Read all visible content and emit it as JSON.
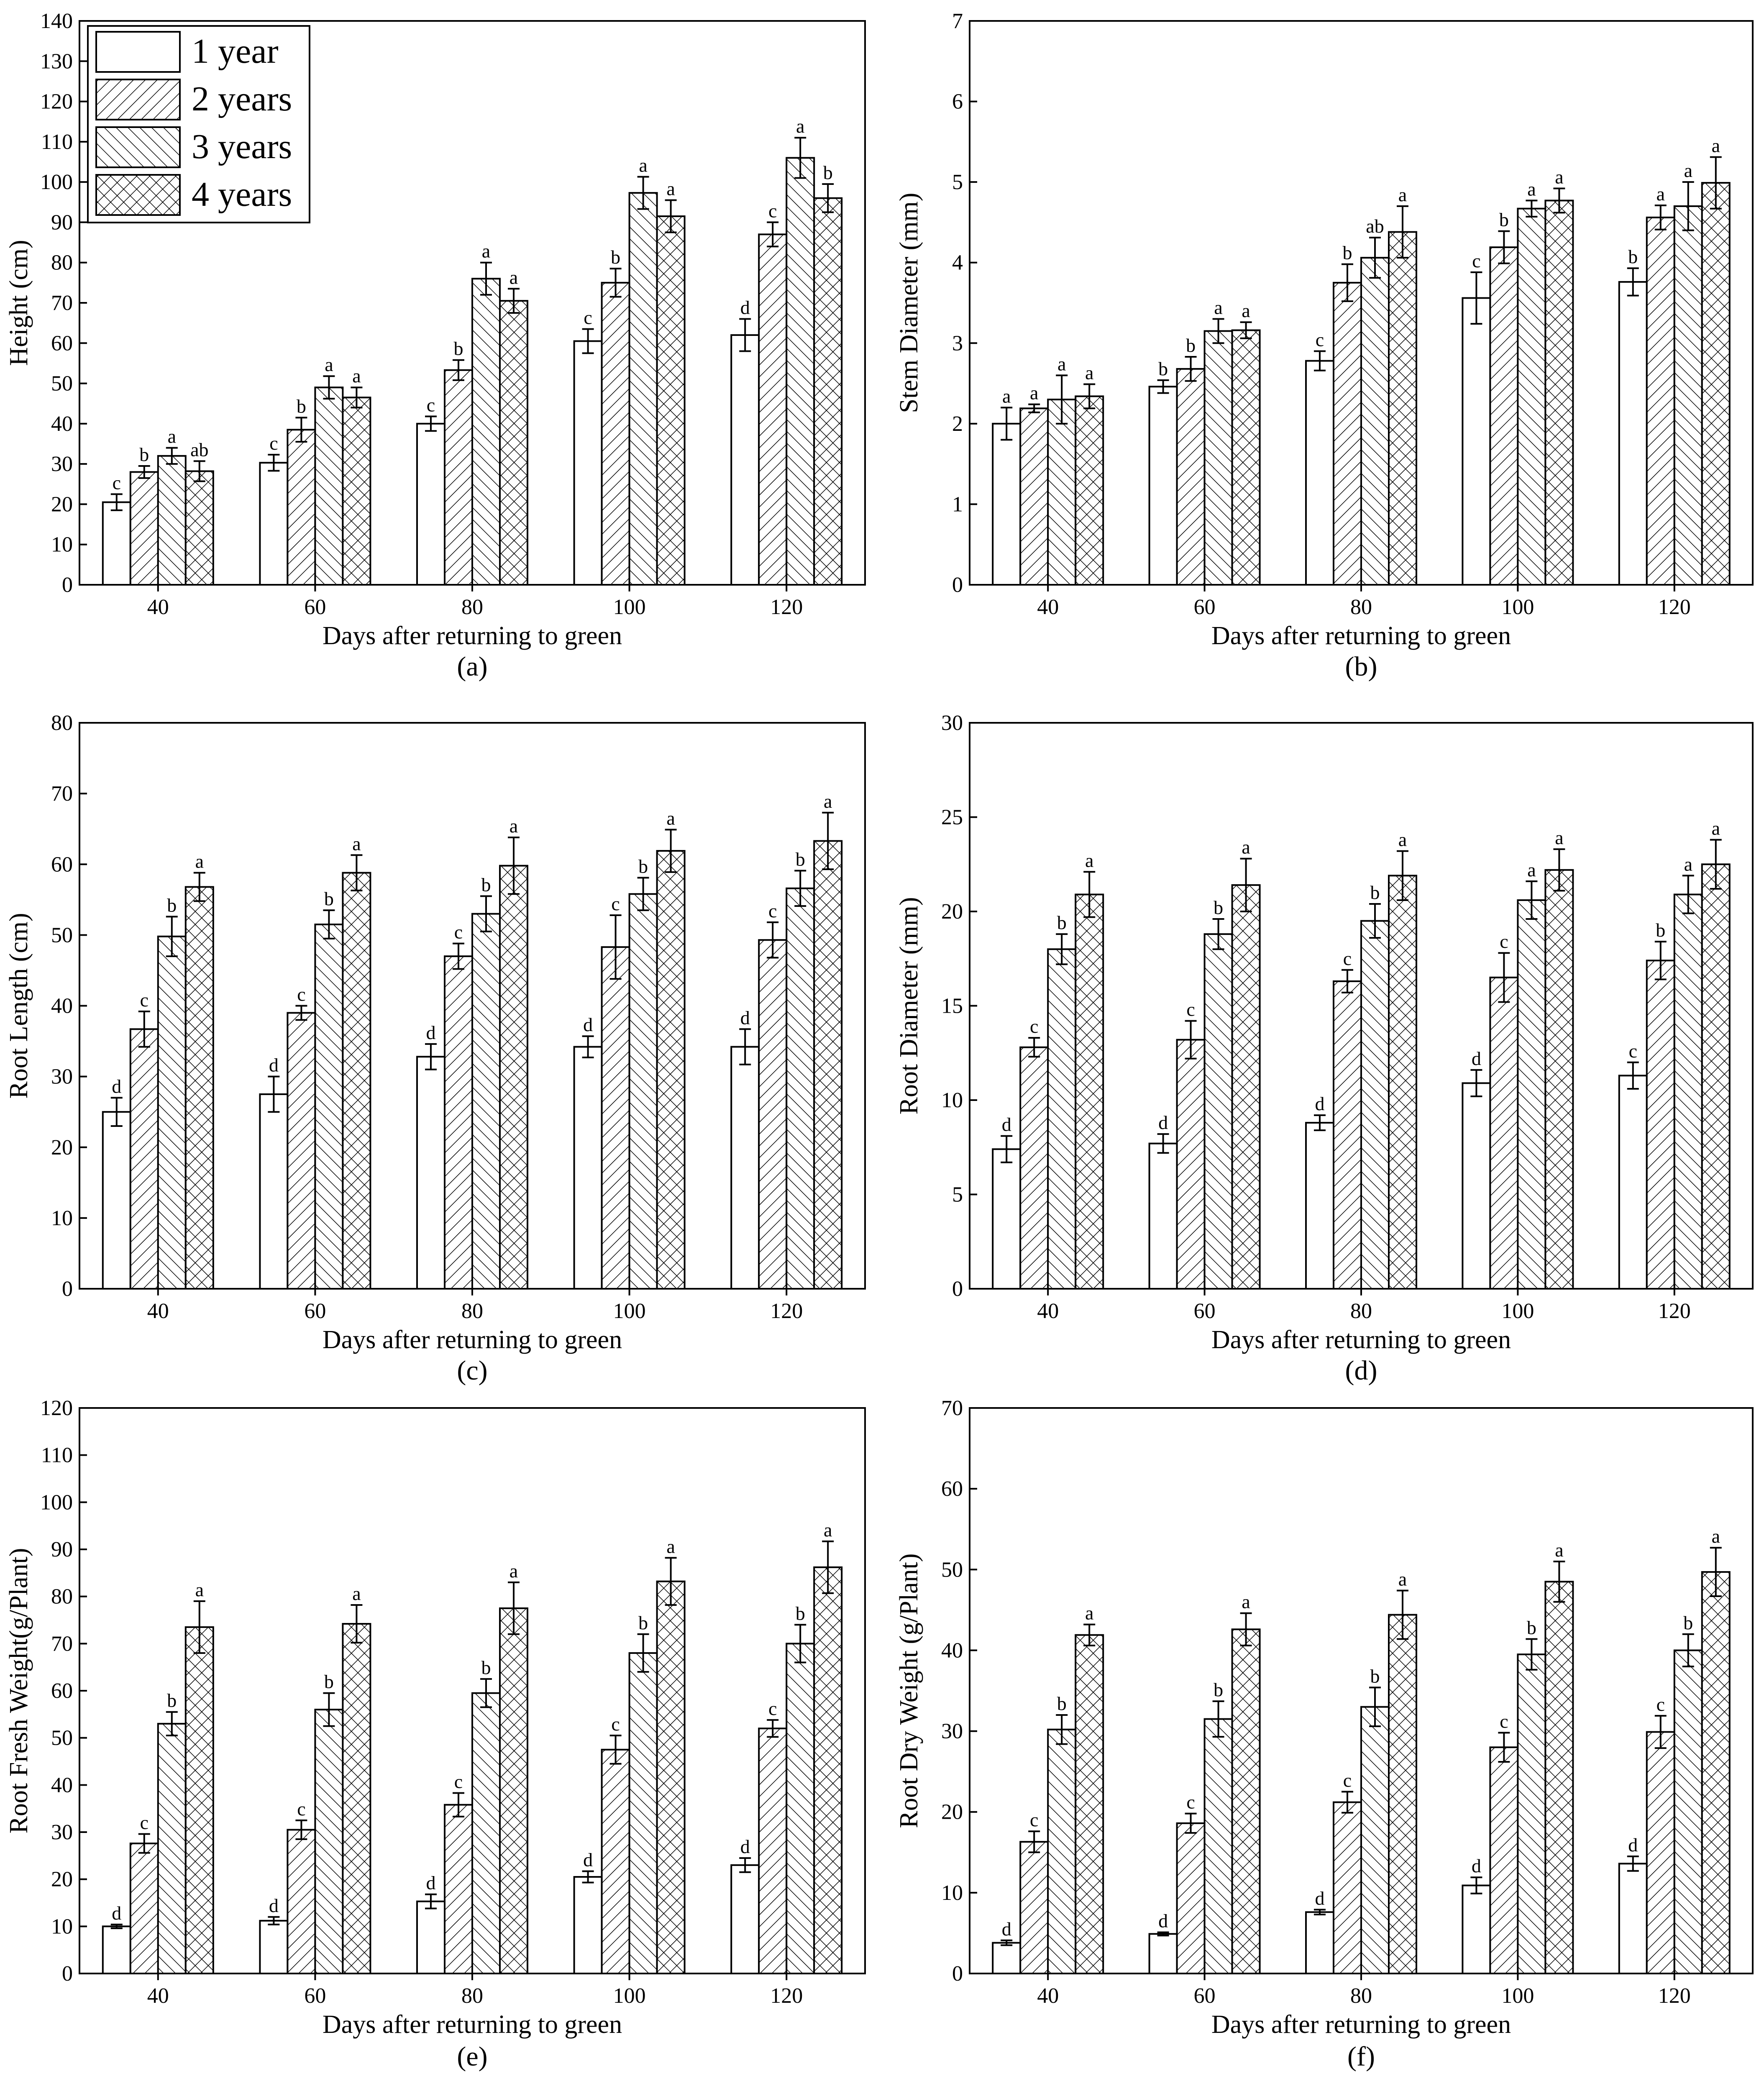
{
  "figure": {
    "xlabel": "Days after returning to green",
    "categories": [
      "40",
      "60",
      "80",
      "100",
      "120"
    ],
    "legend": [
      "1 year",
      "2 years",
      "3 years",
      "4 years"
    ]
  },
  "chart_data": [
    {
      "id": "a",
      "type": "bar",
      "panel_label": "(a)",
      "title": "",
      "xlabel": "Days after returning to green",
      "ylabel": "Height (cm)",
      "ylim": [
        0,
        140
      ],
      "ytick_step": 10,
      "categories": [
        "40",
        "60",
        "80",
        "100",
        "120"
      ],
      "series": [
        {
          "name": "1 year",
          "values": [
            20.5,
            30.3,
            40.0,
            60.5,
            62.0
          ],
          "errors": [
            2.0,
            2.0,
            1.8,
            3.0,
            4.0
          ],
          "letters": [
            "c",
            "c",
            "c",
            "c",
            "d"
          ]
        },
        {
          "name": "2 years",
          "values": [
            28.0,
            38.5,
            53.3,
            75.0,
            87.0
          ],
          "errors": [
            1.5,
            3.0,
            2.5,
            3.5,
            3.0
          ],
          "letters": [
            "b",
            "b",
            "b",
            "b",
            "c"
          ]
        },
        {
          "name": "3 years",
          "values": [
            32.0,
            49.0,
            76.0,
            97.3,
            106.0
          ],
          "errors": [
            2.0,
            2.8,
            4.0,
            4.0,
            5.0
          ],
          "letters": [
            "a",
            "a",
            "a",
            "a",
            "a"
          ]
        },
        {
          "name": "4 years",
          "values": [
            28.2,
            46.5,
            70.5,
            91.5,
            96.0
          ],
          "errors": [
            2.5,
            2.5,
            3.0,
            4.0,
            3.5
          ],
          "letters": [
            "ab",
            "a",
            "a",
            "a",
            "b"
          ]
        }
      ]
    },
    {
      "id": "b",
      "type": "bar",
      "panel_label": "(b)",
      "title": "",
      "xlabel": "Days after returning to green",
      "ylabel": "Stem Diameter (mm)",
      "ylim": [
        0,
        7
      ],
      "ytick_step": 1,
      "categories": [
        "40",
        "60",
        "80",
        "100",
        "120"
      ],
      "series": [
        {
          "name": "1 year",
          "values": [
            2.0,
            2.46,
            2.78,
            3.56,
            3.76
          ],
          "errors": [
            0.2,
            0.08,
            0.12,
            0.32,
            0.17
          ],
          "letters": [
            "a",
            "b",
            "c",
            "c",
            "b"
          ]
        },
        {
          "name": "2 years",
          "values": [
            2.19,
            2.68,
            3.75,
            4.19,
            4.56
          ],
          "errors": [
            0.05,
            0.15,
            0.23,
            0.2,
            0.15
          ],
          "letters": [
            "a",
            "b",
            "b",
            "b",
            "a"
          ]
        },
        {
          "name": "3 years",
          "values": [
            2.3,
            3.15,
            4.06,
            4.67,
            4.7
          ],
          "errors": [
            0.3,
            0.15,
            0.25,
            0.1,
            0.3
          ],
          "letters": [
            "a",
            "a",
            "ab",
            "a",
            "a"
          ]
        },
        {
          "name": "4 years",
          "values": [
            2.34,
            3.16,
            4.38,
            4.77,
            4.99
          ],
          "errors": [
            0.15,
            0.1,
            0.32,
            0.15,
            0.32
          ],
          "letters": [
            "a",
            "a",
            "a",
            "a",
            "a"
          ]
        }
      ]
    },
    {
      "id": "c",
      "type": "bar",
      "panel_label": "(c)",
      "title": "",
      "xlabel": "Days after returning to green",
      "ylabel": "Root Length (cm)",
      "ylim": [
        0,
        80
      ],
      "ytick_step": 10,
      "categories": [
        "40",
        "60",
        "80",
        "100",
        "120"
      ],
      "series": [
        {
          "name": "1 year",
          "values": [
            25.0,
            27.5,
            32.8,
            34.2,
            34.2
          ],
          "errors": [
            2.0,
            2.5,
            1.8,
            1.5,
            2.5
          ],
          "letters": [
            "d",
            "d",
            "d",
            "d",
            "d"
          ]
        },
        {
          "name": "2 years",
          "values": [
            36.7,
            39.0,
            47.0,
            48.3,
            49.3
          ],
          "errors": [
            2.5,
            1.0,
            1.8,
            4.5,
            2.5
          ],
          "letters": [
            "c",
            "c",
            "c",
            "c",
            "c"
          ]
        },
        {
          "name": "3 years",
          "values": [
            49.8,
            51.5,
            53.0,
            55.8,
            56.6
          ],
          "errors": [
            2.8,
            2.0,
            2.5,
            2.3,
            2.5
          ],
          "letters": [
            "b",
            "b",
            "b",
            "b",
            "b"
          ]
        },
        {
          "name": "4 years",
          "values": [
            56.8,
            58.8,
            59.8,
            61.9,
            63.3
          ],
          "errors": [
            2.0,
            2.5,
            4.0,
            3.0,
            4.0
          ],
          "letters": [
            "a",
            "a",
            "a",
            "a",
            "a"
          ]
        }
      ]
    },
    {
      "id": "d",
      "type": "bar",
      "panel_label": "(d)",
      "title": "",
      "xlabel": "Days after returning to green",
      "ylabel": "Root Diameter (mm)",
      "ylim": [
        0,
        30
      ],
      "ytick_step": 5,
      "categories": [
        "40",
        "60",
        "80",
        "100",
        "120"
      ],
      "series": [
        {
          "name": "1 year",
          "values": [
            7.4,
            7.7,
            8.8,
            10.9,
            11.3
          ],
          "errors": [
            0.7,
            0.5,
            0.4,
            0.7,
            0.7
          ],
          "letters": [
            "d",
            "d",
            "d",
            "d",
            "c"
          ]
        },
        {
          "name": "2 years",
          "values": [
            12.8,
            13.2,
            16.3,
            16.5,
            17.4
          ],
          "errors": [
            0.5,
            1.0,
            0.6,
            1.3,
            1.0
          ],
          "letters": [
            "c",
            "c",
            "c",
            "c",
            "b"
          ]
        },
        {
          "name": "3 years",
          "values": [
            18.0,
            18.8,
            19.5,
            20.6,
            20.9
          ],
          "errors": [
            0.8,
            0.8,
            0.9,
            1.0,
            1.0
          ],
          "letters": [
            "b",
            "b",
            "b",
            "a",
            "a"
          ]
        },
        {
          "name": "4 years",
          "values": [
            20.9,
            21.4,
            21.9,
            22.2,
            22.5
          ],
          "errors": [
            1.2,
            1.4,
            1.3,
            1.1,
            1.3
          ],
          "letters": [
            "a",
            "a",
            "a",
            "a",
            "a"
          ]
        }
      ]
    },
    {
      "id": "e",
      "type": "bar",
      "panel_label": "(e)",
      "title": "",
      "xlabel": "Days after returning to green",
      "ylabel": "Root Fresh Weight(g/Plant)",
      "ylim": [
        0,
        120
      ],
      "ytick_step": 10,
      "categories": [
        "40",
        "60",
        "80",
        "100",
        "120"
      ],
      "series": [
        {
          "name": "1 year",
          "values": [
            10.0,
            11.2,
            15.3,
            20.5,
            23.0
          ],
          "errors": [
            0.4,
            0.8,
            1.5,
            1.2,
            1.5
          ],
          "letters": [
            "d",
            "d",
            "d",
            "d",
            "d"
          ]
        },
        {
          "name": "2 years",
          "values": [
            27.6,
            30.5,
            35.8,
            47.5,
            52.0
          ],
          "errors": [
            2.0,
            2.0,
            2.5,
            3.0,
            1.8
          ],
          "letters": [
            "c",
            "c",
            "c",
            "c",
            "c"
          ]
        },
        {
          "name": "3 years",
          "values": [
            53.0,
            56.0,
            59.5,
            68.0,
            70.0
          ],
          "errors": [
            2.5,
            3.5,
            3.0,
            4.0,
            4.0
          ],
          "letters": [
            "b",
            "b",
            "b",
            "b",
            "b"
          ]
        },
        {
          "name": "4 years",
          "values": [
            73.5,
            74.2,
            77.5,
            83.2,
            86.2
          ],
          "errors": [
            5.5,
            4.0,
            5.5,
            5.0,
            5.5
          ],
          "letters": [
            "a",
            "a",
            "a",
            "a",
            "a"
          ]
        }
      ]
    },
    {
      "id": "f",
      "type": "bar",
      "panel_label": "(f)",
      "title": "",
      "xlabel": "Days after returning to green",
      "ylabel": "Root Dry Weight (g/Plant)",
      "ylim": [
        0,
        70
      ],
      "ytick_step": 10,
      "categories": [
        "40",
        "60",
        "80",
        "100",
        "120"
      ],
      "series": [
        {
          "name": "1 year",
          "values": [
            3.8,
            4.9,
            7.6,
            10.9,
            13.6
          ],
          "errors": [
            0.3,
            0.2,
            0.3,
            1.0,
            0.9
          ],
          "letters": [
            "d",
            "d",
            "d",
            "d",
            "d"
          ]
        },
        {
          "name": "2 years",
          "values": [
            16.3,
            18.6,
            21.2,
            28.0,
            29.9
          ],
          "errors": [
            1.3,
            1.2,
            1.3,
            1.8,
            2.0
          ],
          "letters": [
            "c",
            "c",
            "c",
            "c",
            "c"
          ]
        },
        {
          "name": "3 years",
          "values": [
            30.2,
            31.5,
            33.0,
            39.5,
            40.0
          ],
          "errors": [
            1.8,
            2.2,
            2.4,
            1.9,
            2.0
          ],
          "letters": [
            "b",
            "b",
            "b",
            "b",
            "b"
          ]
        },
        {
          "name": "4 years",
          "values": [
            41.9,
            42.6,
            44.4,
            48.5,
            49.7
          ],
          "errors": [
            1.3,
            2.0,
            3.0,
            2.5,
            3.0
          ],
          "letters": [
            "a",
            "a",
            "a",
            "a",
            "a"
          ]
        }
      ]
    }
  ]
}
